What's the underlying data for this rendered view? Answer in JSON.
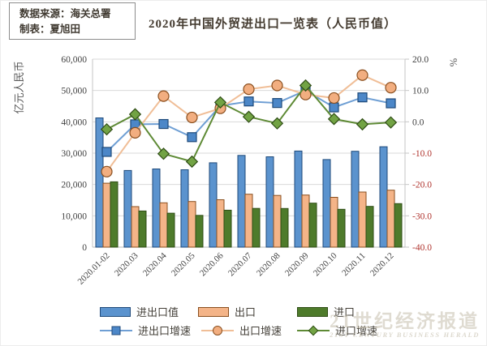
{
  "header": {
    "source_line1": "数据来源：海关总署",
    "source_line2": "制表：夏旭田",
    "title": "2020年中国外贸进出口一览表（人民币值）"
  },
  "watermark": {
    "cn": "21世纪经济报道",
    "en": "21ST CENTURY BUSINESS HERALD"
  },
  "chart_data": {
    "type": "combo-bar-line",
    "categories": [
      "2020.01-02",
      "2020.03",
      "2020.04",
      "2020.05",
      "2020.06",
      "2020.07",
      "2020.08",
      "2020.09",
      "2020.10",
      "2020.11",
      "2020.12"
    ],
    "left_axis": {
      "label": "亿元人民币",
      "min": 0,
      "max": 60000,
      "step": 10000,
      "tick_labels": [
        "0",
        "10,000",
        "20,000",
        "30,000",
        "40,000",
        "50,000",
        "60,000"
      ],
      "tick_color": "#3f3f3f"
    },
    "right_axis": {
      "label": "%",
      "min": -40,
      "max": 20,
      "step": 10,
      "tick_labels": [
        "-40.0",
        "-30.0",
        "-20.0",
        "-10.0",
        "0.0",
        "10.0",
        "20.0"
      ],
      "positive_tick_color": "#3f3f3f",
      "negative_tick_color": "#b0352f"
    },
    "grid_color": "#d9d9d9",
    "axis_line_color": "#c6c6c6",
    "legend_position": "bottom",
    "bar_series": [
      {
        "name": "进出口值",
        "unit": "亿元人民币",
        "fill": "#5b93ce",
        "stroke": "#1f4a7a",
        "values": [
          41238,
          24459,
          24966,
          24696,
          26931,
          29269,
          28839,
          30663,
          27966,
          30607,
          32054
        ]
      },
      {
        "name": "出口",
        "unit": "亿元人民币",
        "fill": "#f4b488",
        "stroke": "#8a4f1f",
        "values": [
          20406,
          12927,
          14136,
          14562,
          15131,
          16899,
          16502,
          16620,
          15898,
          17597,
          18177
        ]
      },
      {
        "name": "进口",
        "unit": "亿元人民币",
        "fill": "#4e7b2b",
        "stroke": "#2f4d15",
        "values": [
          20832,
          11532,
          10830,
          10134,
          11800,
          12370,
          12336,
          14043,
          12068,
          13010,
          13877
        ]
      }
    ],
    "line_series": [
      {
        "name": "进出口增速",
        "unit": "%",
        "marker": "square",
        "line_color": "#6f9fd4",
        "marker_fill": "#4c87c8",
        "marker_stroke": "#1f4a7a",
        "values": [
          -9.6,
          -0.8,
          -0.7,
          -4.9,
          5.1,
          6.5,
          6.0,
          10.0,
          4.6,
          7.8,
          5.9
        ]
      },
      {
        "name": "出口增速",
        "unit": "%",
        "marker": "circle",
        "line_color": "#f0be97",
        "marker_fill": "#f2ae80",
        "marker_stroke": "#8a4f1f",
        "values": [
          -15.9,
          -3.5,
          8.2,
          1.4,
          4.3,
          10.4,
          11.6,
          8.7,
          7.6,
          14.9,
          10.9
        ]
      },
      {
        "name": "进口增速",
        "unit": "%",
        "marker": "diamond",
        "line_color": "#5e8a35",
        "marker_fill": "#72a344",
        "marker_stroke": "#2f4d15",
        "values": [
          -2.4,
          2.4,
          -10.2,
          -12.7,
          6.2,
          1.6,
          -0.5,
          11.6,
          0.9,
          -0.8,
          -0.2
        ]
      }
    ]
  }
}
